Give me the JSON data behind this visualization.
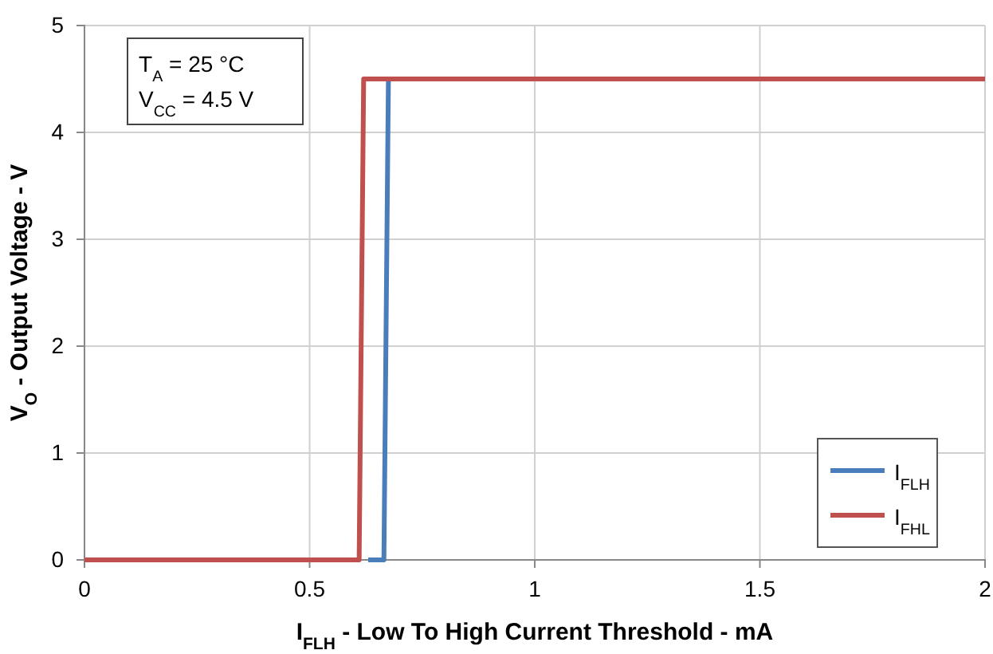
{
  "chart_data": {
    "type": "line",
    "xlabel": "I$_{FLH}$ - Low To High Current Threshold - mA",
    "ylabel": "V$_{O}$ - Output Voltage - V",
    "xlim": [
      0,
      2
    ],
    "xticks": [
      0,
      0.5,
      1,
      1.5,
      2
    ],
    "ylim": [
      0,
      5
    ],
    "yticks": [
      0,
      1,
      2,
      3,
      4,
      5
    ],
    "grid": true,
    "legend": "bottom right",
    "line_style": "solid",
    "marker": "none",
    "annotations": [
      "T$_{A}$ = 25 °C",
      "V$_{CC}$ = 4.5 V"
    ],
    "series": [
      {
        "name": "I$_{FLH}$",
        "color": "#4a7ebb",
        "x": [
          0.63,
          0.665,
          0.675
        ],
        "values": [
          0,
          0,
          4.5
        ]
      },
      {
        "name": "I$_{FHL}$",
        "color": "#c0504d",
        "x": [
          0,
          0.61,
          0.62,
          2
        ],
        "values": [
          0,
          0,
          4.5,
          4.5
        ]
      }
    ]
  }
}
